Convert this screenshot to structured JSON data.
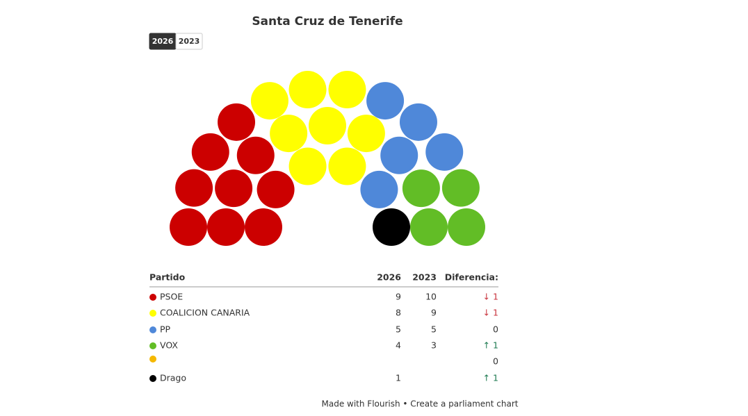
{
  "chart_data": {
    "type": "parliament",
    "title": "Santa Cruz de Tenerife",
    "years": [
      "2026",
      "2023"
    ],
    "selected_year": "2026",
    "party_header": "Partido",
    "change_header": "Diferencia:",
    "series": [
      {
        "name": "PSOE",
        "color": "#cc0000",
        "values": [
          9,
          10
        ],
        "change": -1,
        "change_label": "↓ 1"
      },
      {
        "name": "COALICION CANARIA",
        "color": "#ffff00",
        "values": [
          8,
          9
        ],
        "change": -1,
        "change_label": "↓ 1"
      },
      {
        "name": "PP",
        "color": "#4f88d9",
        "values": [
          5,
          5
        ],
        "change": 0
      },
      {
        "name": "VOX",
        "color": "#62bd26",
        "values": [
          4,
          3
        ],
        "change": 1,
        "change_label": "↑ 1"
      },
      {
        "name": null,
        "color": "#f5b800",
        "values": [
          null,
          null
        ],
        "change": 0
      },
      {
        "name": "Drago",
        "color": "#000000",
        "values": [
          1,
          null
        ],
        "change": 1,
        "change_label": "↑ 1"
      }
    ],
    "footer": "Made with Flourish • Create a parliament chart"
  }
}
